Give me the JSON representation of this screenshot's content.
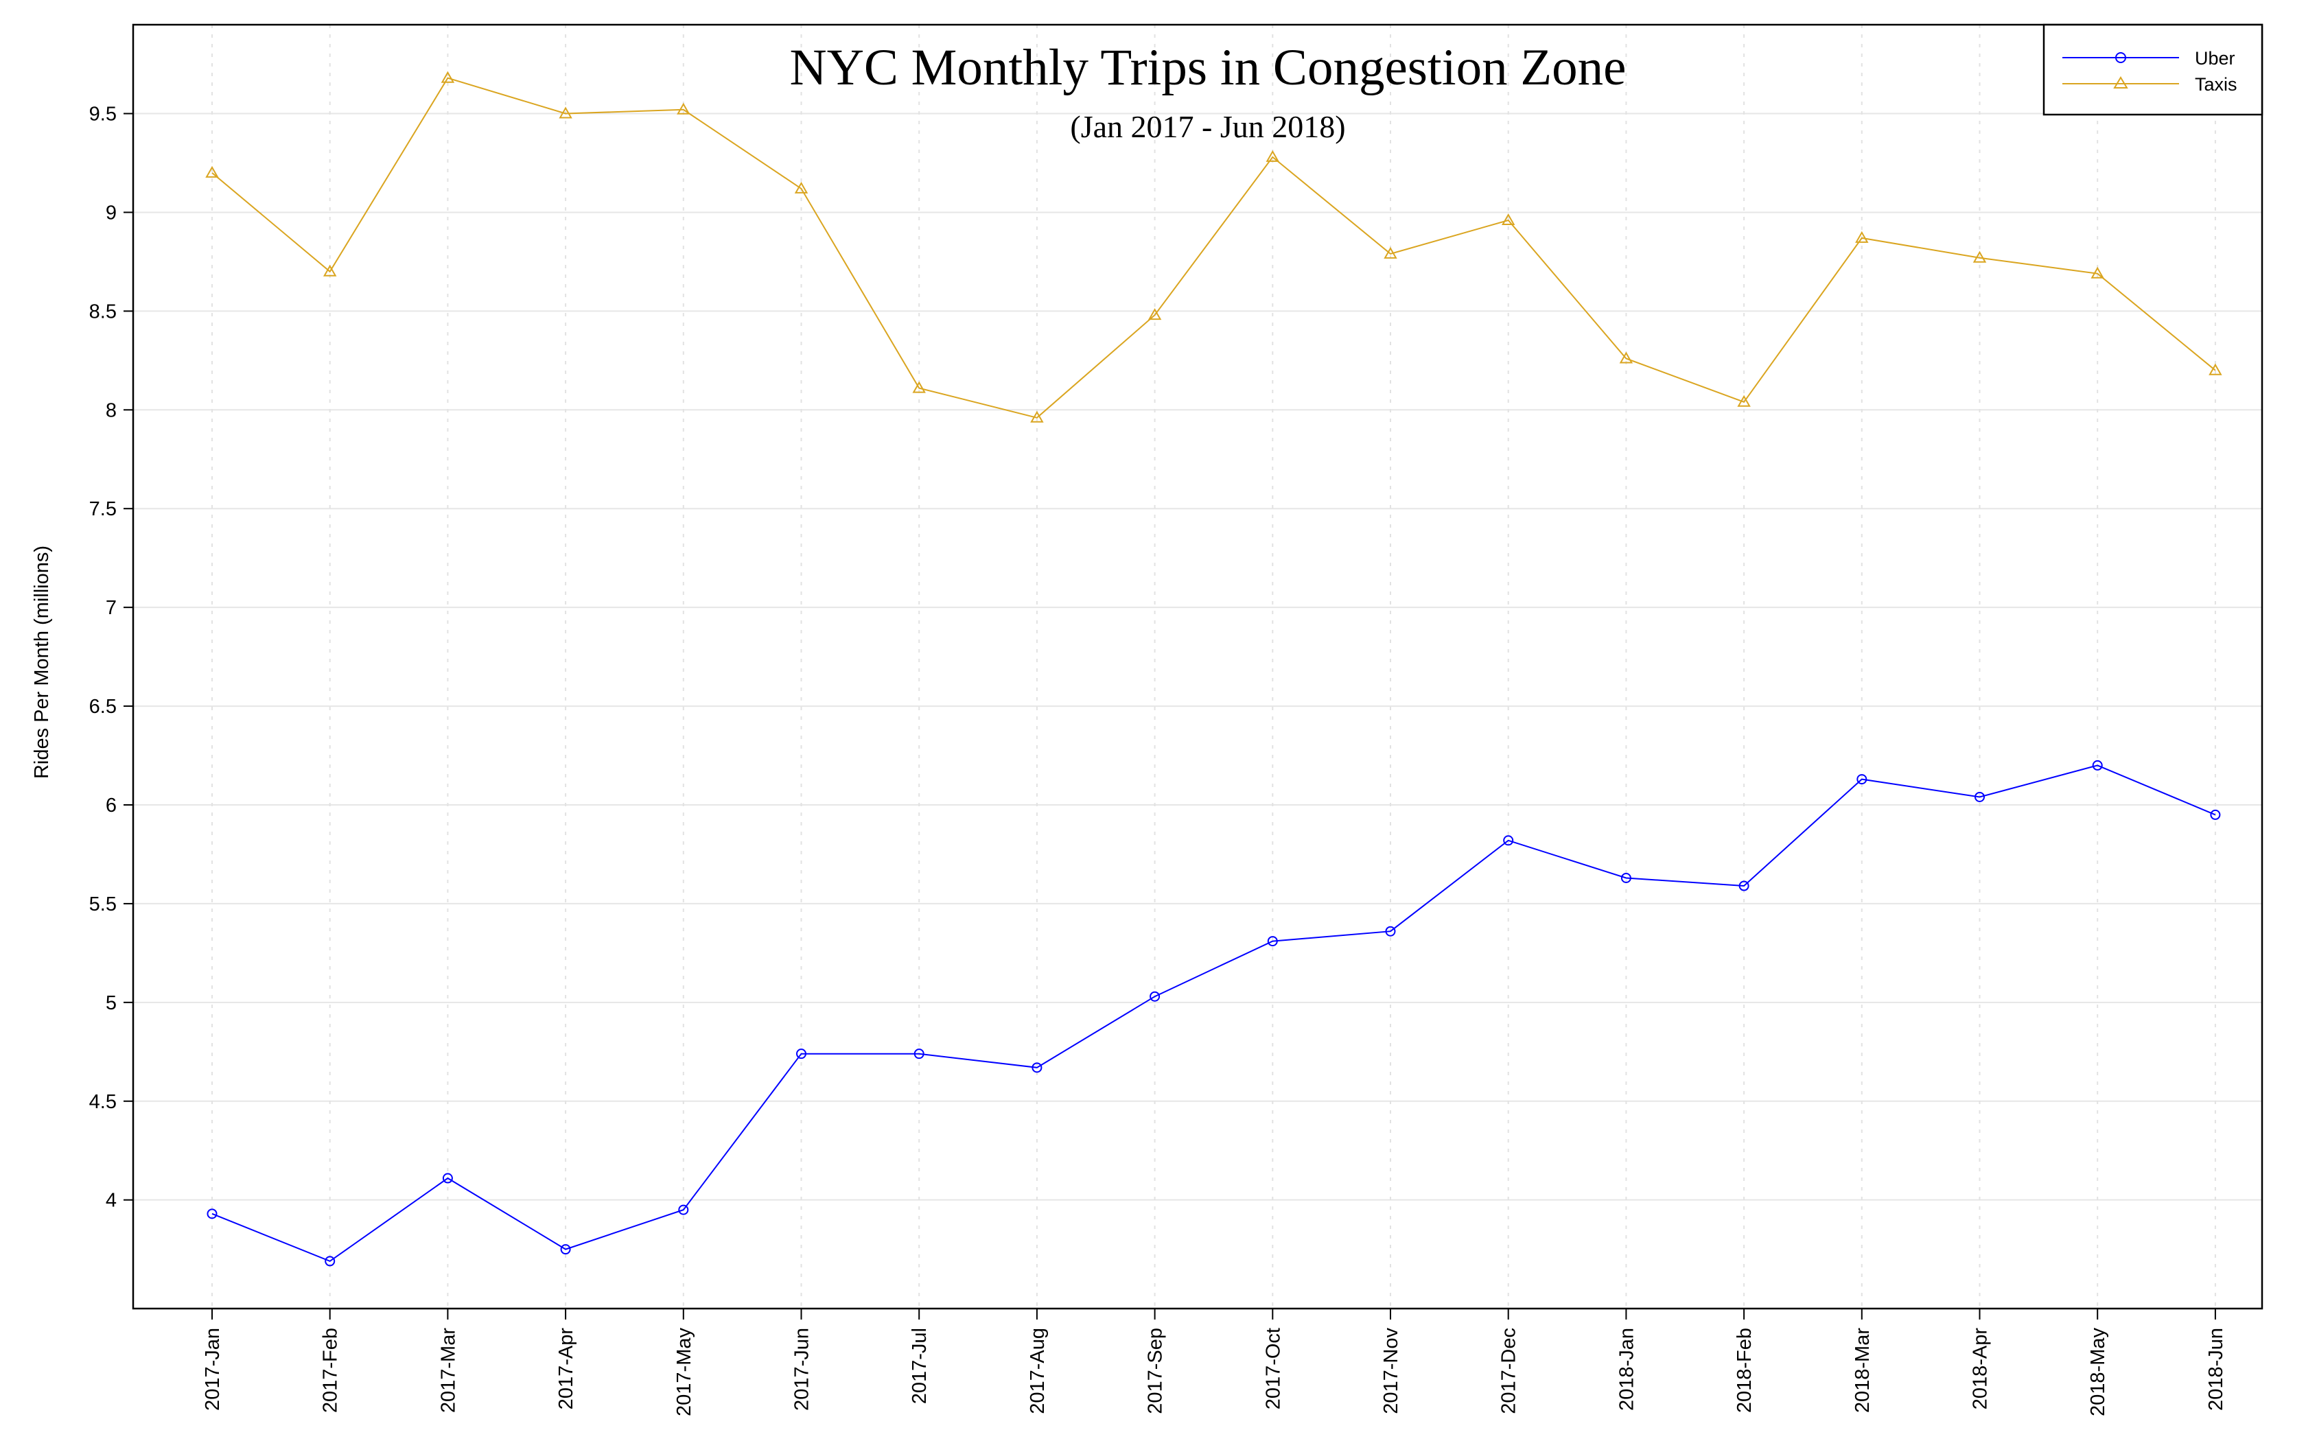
{
  "chart_data": {
    "type": "line",
    "title": "NYC Monthly Trips in Congestion Zone",
    "subtitle": "(Jan 2017 - Jun 2018)",
    "xlabel": "",
    "ylabel": "Rides Per Month (millions)",
    "categories": [
      "2017-Jan",
      "2017-Feb",
      "2017-Mar",
      "2017-Apr",
      "2017-May",
      "2017-Jun",
      "2017-Jul",
      "2017-Aug",
      "2017-Sep",
      "2017-Oct",
      "2017-Nov",
      "2017-Dec",
      "2018-Jan",
      "2018-Feb",
      "2018-Mar",
      "2018-Apr",
      "2018-May",
      "2018-Jun"
    ],
    "yticks": [
      4,
      4.5,
      5,
      5.5,
      6,
      6.5,
      7,
      7.5,
      8,
      8.5,
      9,
      9.5
    ],
    "ylim": [
      3.45,
      9.95
    ],
    "grid": true,
    "legend_position": "top-right",
    "series": [
      {
        "name": "Uber",
        "color": "#0000ff",
        "marker": "circle",
        "values": [
          3.93,
          3.69,
          4.11,
          3.75,
          3.95,
          4.74,
          4.74,
          4.67,
          5.03,
          5.31,
          5.36,
          5.82,
          5.63,
          5.59,
          6.13,
          6.04,
          6.2,
          5.95
        ]
      },
      {
        "name": "Taxis",
        "color": "#daa520",
        "marker": "triangle",
        "values": [
          9.2,
          8.7,
          9.68,
          9.5,
          9.52,
          9.12,
          8.11,
          7.96,
          8.48,
          9.28,
          8.79,
          8.96,
          8.26,
          8.04,
          8.87,
          8.77,
          8.69,
          8.2
        ]
      }
    ]
  }
}
